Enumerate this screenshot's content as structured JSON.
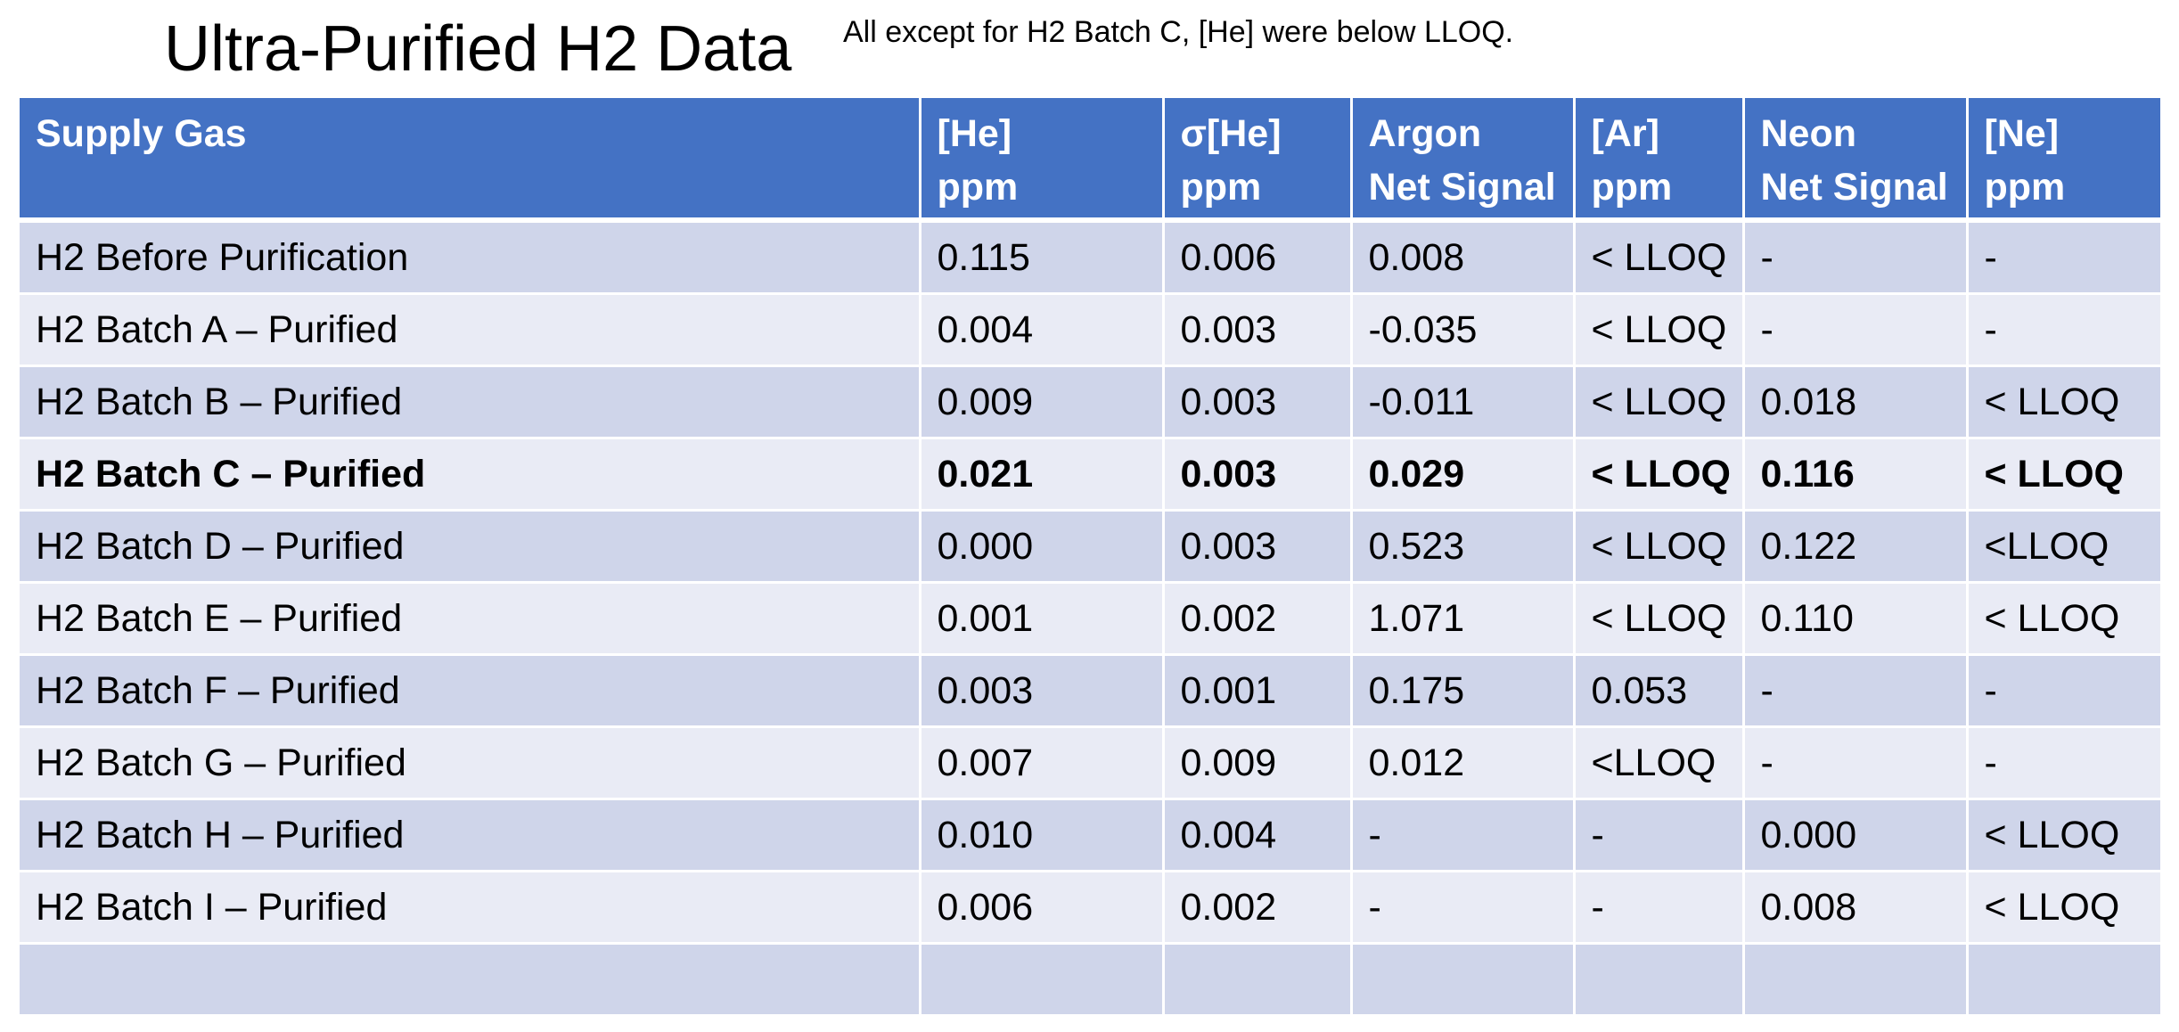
{
  "title": "Ultra-Purified H2 Data",
  "note": "All except for H2 Batch C, [He] were below LLOQ.",
  "colors": {
    "header_bg": "#4472c4",
    "row_odd": "#cfd5ea",
    "row_even": "#e9ebf5"
  },
  "table": {
    "headers": [
      {
        "line1": "Supply Gas",
        "line2": ""
      },
      {
        "line1": "[He]",
        "line2": "ppm"
      },
      {
        "line1": "σ[He]",
        "line2": "ppm"
      },
      {
        "line1": "Argon",
        "line2": "Net Signal"
      },
      {
        "line1": "[Ar]",
        "line2": "ppm"
      },
      {
        "line1": "Neon",
        "line2": "Net Signal"
      },
      {
        "line1": "[Ne]",
        "line2": "ppm"
      }
    ],
    "rows": [
      [
        "H2 Before Purification",
        "0.115",
        "0.006",
        "0.008",
        "< LLOQ",
        "-",
        "-"
      ],
      [
        "H2 Batch A – Purified",
        "0.004",
        "0.003",
        "-0.035",
        "< LLOQ",
        "-",
        "-"
      ],
      [
        "H2 Batch B – Purified",
        "0.009",
        "0.003",
        "-0.011",
        "< LLOQ",
        "0.018",
        "< LLOQ"
      ],
      [
        "H2 Batch C – Purified",
        "0.021",
        "0.003",
        "0.029",
        "< LLOQ",
        "0.116",
        "< LLOQ"
      ],
      [
        "H2 Batch D – Purified",
        "0.000",
        "0.003",
        "0.523",
        "< LLOQ",
        "0.122",
        "<LLOQ"
      ],
      [
        "H2 Batch E – Purified",
        "0.001",
        "0.002",
        "1.071",
        "< LLOQ",
        "0.110",
        "< LLOQ"
      ],
      [
        "H2 Batch F – Purified",
        "0.003",
        "0.001",
        "0.175",
        "0.053",
        "-",
        "-"
      ],
      [
        "H2 Batch G – Purified",
        "0.007",
        "0.009",
        "0.012",
        "<LLOQ",
        "-",
        "-"
      ],
      [
        "H2 Batch H – Purified",
        "0.010",
        "0.004",
        "-",
        "-",
        "0.000",
        "< LLOQ"
      ],
      [
        "H2 Batch I – Purified",
        "0.006",
        "0.002",
        "-",
        "-",
        "0.008",
        "< LLOQ"
      ],
      [
        "",
        "",
        "",
        "",
        "",
        "",
        ""
      ]
    ]
  }
}
